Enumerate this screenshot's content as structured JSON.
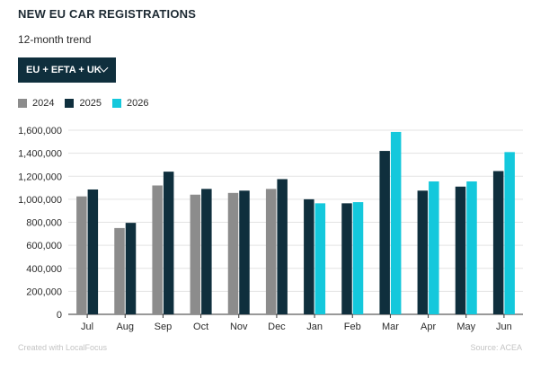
{
  "header": {
    "title": "NEW EU CAR REGISTRATIONS",
    "subtitle": "12-month trend"
  },
  "filter": {
    "selected": "EU + EFTA + UK",
    "icon": "chevron-down-icon"
  },
  "colors": {
    "2024": "#8c8c8c",
    "2025": "#0f2f3d",
    "2026": "#14c8dc",
    "grid": "#e3e3e3",
    "axis": "#333333"
  },
  "footer": {
    "credit": "Created with LocalFocus",
    "source": "Source:  ACEA"
  },
  "chart_data": {
    "type": "bar",
    "categories": [
      "Jul",
      "Aug",
      "Sep",
      "Oct",
      "Nov",
      "Dec",
      "Jan",
      "Feb",
      "Mar",
      "Apr",
      "May",
      "Jun"
    ],
    "series": [
      {
        "name": "2024",
        "values": [
          1025000,
          750000,
          1120000,
          1040000,
          1055000,
          1090000,
          null,
          null,
          null,
          null,
          null,
          null
        ]
      },
      {
        "name": "2025",
        "values": [
          1085000,
          795000,
          1240000,
          1090000,
          1075000,
          1175000,
          1000000,
          965000,
          1420000,
          1075000,
          1110000,
          1245000
        ]
      },
      {
        "name": "2026",
        "values": [
          null,
          null,
          null,
          null,
          null,
          null,
          965000,
          975000,
          1585000,
          1155000,
          1155000,
          1410000
        ]
      }
    ],
    "yticks": [
      "0",
      "200,000",
      "400,000",
      "600,000",
      "800,000",
      "1,000,000",
      "1,200,000",
      "1,400,000",
      "1,600,000"
    ],
    "ylim": [
      0,
      1600000
    ],
    "grid": true,
    "legend": "top-left"
  }
}
